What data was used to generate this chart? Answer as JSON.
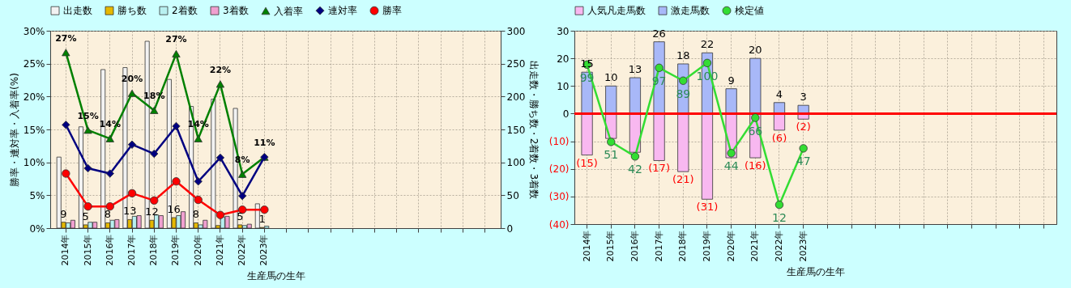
{
  "chart_data": [
    {
      "type": "bar",
      "xlabel": "生産馬の生年",
      "ylabel": "勝率・連対率・入着率(%)",
      "y2label": "出走数・勝ち数・2着数・3着数",
      "categories": [
        "2014年",
        "2015年",
        "2016年",
        "2017年",
        "2018年",
        "2019年",
        "2020年",
        "2021年",
        "2022年",
        "2023年",
        null,
        null,
        null,
        null,
        null,
        null,
        null,
        null,
        null,
        null
      ],
      "ylim": [
        0,
        30
      ],
      "yticks": [
        {
          "value": 0,
          "label": "0%"
        },
        {
          "value": 5,
          "label": "5%"
        },
        {
          "value": 10,
          "label": "10%"
        },
        {
          "value": 15,
          "label": "15%"
        },
        {
          "value": 20,
          "label": "20%"
        },
        {
          "value": 25,
          "label": "25%"
        },
        {
          "value": 30,
          "label": "30%"
        }
      ],
      "y2lim": [
        0,
        300
      ],
      "y2ticks": [
        0,
        50,
        100,
        150,
        200,
        250,
        300
      ],
      "grid": true,
      "legend": "top",
      "line_style": "solid",
      "series": [
        {
          "name": "出走数",
          "color": "#f2f2f2",
          "axis": "y2",
          "values": [
            108,
            154,
            241,
            244,
            284,
            226,
            185,
            196,
            182,
            37,
            null,
            null,
            null,
            null,
            null,
            null,
            null,
            null,
            null,
            null
          ]
        },
        {
          "name": "勝ち数",
          "color": "#e6b800",
          "axis": "y2",
          "values": [
            9,
            5,
            8,
            13,
            12,
            16,
            8,
            4,
            5,
            1,
            null,
            null,
            null,
            null,
            null,
            null,
            null,
            null,
            null,
            null
          ],
          "value_labels": [
            "9",
            "5",
            "8",
            "13",
            "12",
            "16",
            "8",
            null,
            "5",
            "1",
            null,
            null,
            null,
            null,
            null,
            null,
            null,
            null,
            null,
            null
          ]
        },
        {
          "name": "2着数",
          "color": "#b8f0f0",
          "axis": "y2",
          "values": [
            8,
            9,
            12,
            18,
            20,
            19,
            5,
            17,
            4,
            3,
            null,
            null,
            null,
            null,
            null,
            null,
            null,
            null,
            null,
            null
          ]
        },
        {
          "name": "3着数",
          "color": "#f0a0d0",
          "axis": "y2",
          "values": [
            12,
            9,
            13,
            19,
            19,
            25,
            12,
            18,
            6,
            0,
            null,
            null,
            null,
            null,
            null,
            null,
            null,
            null,
            null,
            null
          ]
        },
        {
          "name": "入着率",
          "type": "line",
          "color": "#008000",
          "marker": "triangle",
          "values": [
            26.7,
            14.9,
            13.6,
            20.5,
            17.9,
            26.5,
            13.6,
            21.9,
            8.2,
            10.8,
            null,
            null,
            null,
            null,
            null,
            null,
            null,
            null,
            null,
            null
          ],
          "value_labels": [
            "27%",
            "15%",
            "14%",
            "20%",
            "18%",
            "27%",
            "14%",
            "22%",
            "8%",
            "11%",
            null,
            null,
            null,
            null,
            null,
            null,
            null,
            null,
            null,
            null
          ]
        },
        {
          "name": "連対率",
          "type": "line",
          "color": "#000080",
          "marker": "diamond",
          "values": [
            15.7,
            9.1,
            8.3,
            12.7,
            11.3,
            15.5,
            7.1,
            10.7,
            4.9,
            10.8,
            null,
            null,
            null,
            null,
            null,
            null,
            null,
            null,
            null,
            null
          ]
        },
        {
          "name": "勝率",
          "type": "line",
          "color": "#ff0000",
          "marker": "circle",
          "values": [
            8.3,
            3.3,
            3.3,
            5.3,
            4.2,
            7.1,
            4.3,
            2.0,
            2.8,
            2.8,
            null,
            null,
            null,
            null,
            null,
            null,
            null,
            null,
            null,
            null
          ]
        }
      ]
    },
    {
      "type": "bar",
      "stacked": true,
      "xlabel": "生産馬の生年",
      "categories": [
        "2014年",
        "2015年",
        "2016年",
        "2017年",
        "2018年",
        "2019年",
        "2020年",
        "2021年",
        "2022年",
        "2023年",
        null,
        null,
        null,
        null,
        null,
        null,
        null,
        null,
        null,
        null
      ],
      "ylim": [
        -40,
        30
      ],
      "yticks": [
        {
          "value": -40,
          "label": "(40)"
        },
        {
          "value": -30,
          "label": "(30)"
        },
        {
          "value": -20,
          "label": "(20)"
        },
        {
          "value": -10,
          "label": "(10)"
        },
        0,
        10,
        20,
        30
      ],
      "y2lim": [
        0,
        120
      ],
      "tick_labels": "xy",
      "grid": true,
      "legend": "top",
      "line_style": "solid",
      "ref_lines": [
        {
          "axis": "y",
          "value": 0,
          "color": "#ff0000"
        }
      ],
      "series": [
        {
          "name": "人気凡走馬数",
          "color": "#f8b8f0",
          "values": [
            -15,
            -9,
            -14,
            -17,
            -21,
            -31,
            -16,
            -16,
            -6,
            -2,
            null,
            null,
            null,
            null,
            null,
            null,
            null,
            null,
            null,
            null
          ],
          "value_labels": [
            "(15)",
            null,
            null,
            "(17)",
            "(21)",
            "(31)",
            null,
            "(16)",
            "(6)",
            "(2)",
            null,
            null,
            null,
            null,
            null,
            null,
            null,
            null,
            null,
            null
          ]
        },
        {
          "name": "激走馬数",
          "color": "#a8b8f8",
          "values": [
            15,
            10,
            13,
            26,
            18,
            22,
            9,
            20,
            4,
            3,
            null,
            null,
            null,
            null,
            null,
            null,
            null,
            null,
            null,
            null
          ],
          "value_labels": [
            "15",
            "10",
            "13",
            "26",
            "18",
            "22",
            "9",
            "20",
            "4",
            "3",
            null,
            null,
            null,
            null,
            null,
            null,
            null,
            null,
            null,
            null
          ]
        },
        {
          "name": "検定値",
          "type": "line",
          "axis": "y2",
          "color": "#33dd33",
          "marker": "circle",
          "values": [
            99,
            51,
            42,
            97,
            89,
            100,
            44,
            66,
            12,
            47,
            null,
            null,
            null,
            null,
            null,
            null,
            null,
            null,
            null,
            null
          ],
          "value_labels": [
            "99",
            "51",
            "42",
            "97",
            "89",
            "100",
            "44",
            "66",
            "12",
            "47",
            null,
            null,
            null,
            null,
            null,
            null,
            null,
            null,
            null,
            null
          ]
        }
      ]
    }
  ]
}
